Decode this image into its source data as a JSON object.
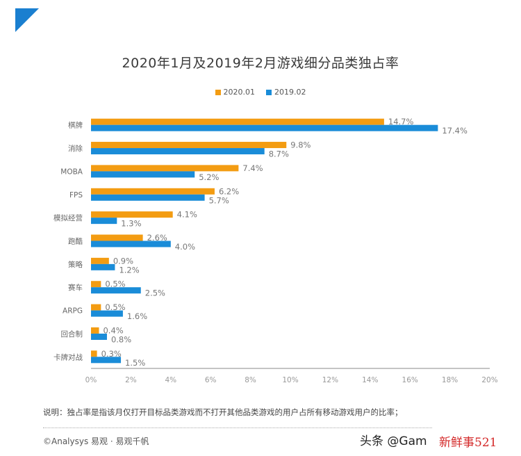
{
  "colors": {
    "series_2020": "#F39C12",
    "series_2019": "#1A8CD8",
    "corner": "#1A7FD0",
    "axis": "#888888"
  },
  "chart_data": {
    "type": "bar",
    "orientation": "horizontal",
    "title": "2020年1月及2019年2月游戏细分品类独占率",
    "categories": [
      "棋牌",
      "消除",
      "MOBA",
      "FPS",
      "模拟经营",
      "跑酷",
      "策略",
      "赛车",
      "ARPG",
      "回合制",
      "卡牌对战"
    ],
    "series": [
      {
        "name": "2020.01",
        "values": [
          14.7,
          9.8,
          7.4,
          6.2,
          4.1,
          2.6,
          0.9,
          0.5,
          0.5,
          0.4,
          0.3
        ]
      },
      {
        "name": "2019.02",
        "values": [
          17.4,
          8.7,
          5.2,
          5.7,
          1.3,
          4.0,
          1.2,
          2.5,
          1.6,
          0.8,
          1.5
        ]
      }
    ],
    "data_labels": [
      [
        "14.7%",
        "9.8%",
        "7.4%",
        "6.2%",
        "4.1%",
        "2.6%",
        "0.9%",
        "0.5%",
        "0.5%",
        "0.4%",
        "0.3%"
      ],
      [
        "17.4%",
        "8.7%",
        "5.2%",
        "5.7%",
        "1.3%",
        "4.0%",
        "1.2%",
        "2.5%",
        "1.6%",
        "0.8%",
        "1.5%"
      ]
    ],
    "xlim": [
      0,
      20
    ],
    "xticks": [
      "0%",
      "2%",
      "4%",
      "6%",
      "8%",
      "10%",
      "12%",
      "14%",
      "16%",
      "18%",
      "20%"
    ],
    "legend_position": "top-center",
    "grid": false
  },
  "note": "说明：独占率是指该月仅打开目标品类游戏而不打开其他品类游戏的用户占所有移动游戏用户的比率；",
  "source": "©Analysys 易观 · 易观千帆",
  "watermark_toutiao": "头条 @Gam",
  "watermark_red": "新鲜事521"
}
